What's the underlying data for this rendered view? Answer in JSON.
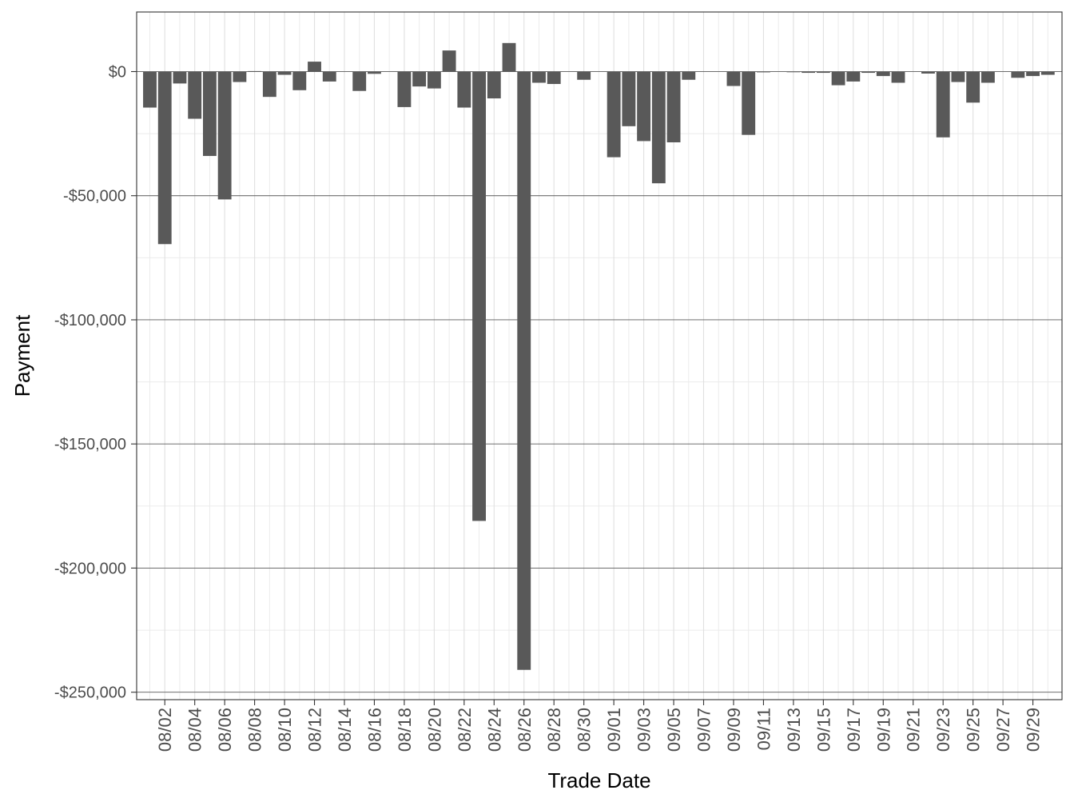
{
  "chart_data": {
    "type": "bar",
    "title": "",
    "xlabel": "Trade Date",
    "ylabel": "Payment",
    "ylim": [
      -253000,
      24000
    ],
    "y_ticks": [
      {
        "value": 0,
        "label": "$0"
      },
      {
        "value": -50000,
        "label": "-$50,000"
      },
      {
        "value": -100000,
        "label": "-$100,000"
      },
      {
        "value": -150000,
        "label": "-$150,000"
      },
      {
        "value": -200000,
        "label": "-$200,000"
      },
      {
        "value": -250000,
        "label": "-$250,000"
      }
    ],
    "x_ticks": [
      "08/02",
      "08/04",
      "08/06",
      "08/08",
      "08/10",
      "08/12",
      "08/14",
      "08/16",
      "08/18",
      "08/20",
      "08/22",
      "08/24",
      "08/26",
      "08/28",
      "08/30",
      "09/01",
      "09/03",
      "09/05",
      "09/07",
      "09/09",
      "09/11",
      "09/13",
      "09/15",
      "09/17",
      "09/19",
      "09/21",
      "09/23",
      "09/25",
      "09/27",
      "09/29"
    ],
    "grid": true,
    "bar_color": "#595959",
    "categories": [
      "08/01",
      "08/02",
      "08/03",
      "08/04",
      "08/05",
      "08/06",
      "08/07",
      "08/08",
      "08/09",
      "08/10",
      "08/11",
      "08/12",
      "08/13",
      "08/14",
      "08/15",
      "08/16",
      "08/17",
      "08/18",
      "08/19",
      "08/20",
      "08/21",
      "08/22",
      "08/23",
      "08/24",
      "08/25",
      "08/26",
      "08/27",
      "08/28",
      "08/29",
      "08/30",
      "08/31",
      "09/01",
      "09/02",
      "09/03",
      "09/04",
      "09/05",
      "09/06",
      "09/07",
      "09/08",
      "09/09",
      "09/10",
      "09/11",
      "09/12",
      "09/13",
      "09/14",
      "09/15",
      "09/16",
      "09/17",
      "09/18",
      "09/19",
      "09/20",
      "09/21",
      "09/22",
      "09/23",
      "09/24",
      "09/25",
      "09/26",
      "09/27",
      "09/28",
      "09/29",
      "09/30"
    ],
    "values": [
      -14500,
      -69500,
      -4800,
      -19000,
      -34000,
      -51500,
      -4200,
      200,
      -10200,
      -1300,
      -7500,
      4000,
      -4000,
      0,
      -7800,
      -900,
      0,
      -14300,
      -6000,
      -6800,
      8500,
      -14500,
      -181000,
      -10800,
      11500,
      -241000,
      -4500,
      -5000,
      0,
      -3300,
      0,
      -34500,
      -22000,
      -28000,
      -45000,
      -28500,
      -3300,
      0,
      0,
      -5800,
      -25500,
      -300,
      0,
      -200,
      -500,
      -500,
      -5500,
      -4000,
      -500,
      -1800,
      -4500,
      0,
      -800,
      -26500,
      -4200,
      -12500,
      -4500,
      0,
      -2500,
      -1800,
      -1300
    ]
  }
}
